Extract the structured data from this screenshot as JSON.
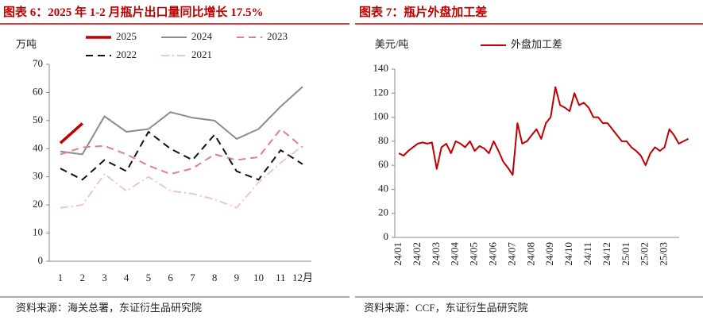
{
  "chart_data": [
    {
      "type": "line",
      "title": "图表 6：2025 年 1-2 月瓶片出口量同比增长 17.5%",
      "ylabel": "万吨",
      "source": "资料来源：海关总署，东证衍生品研究院",
      "categories": [
        "1",
        "2",
        "3",
        "4",
        "5",
        "6",
        "7",
        "8",
        "9",
        "10",
        "11",
        "12月"
      ],
      "ylim": [
        0,
        70
      ],
      "yticks": [
        0,
        10,
        20,
        30,
        40,
        50,
        60,
        70
      ],
      "grid": false,
      "legend": "top",
      "series": [
        {
          "name": "2025",
          "color": "#c00000",
          "style": "solid",
          "width": 3.5,
          "values": [
            42,
            49,
            null,
            null,
            null,
            null,
            null,
            null,
            null,
            null,
            null,
            null
          ]
        },
        {
          "name": "2024",
          "color": "#8c8c8c",
          "style": "solid",
          "width": 2,
          "values": [
            39,
            38,
            51.5,
            46,
            47,
            53,
            51,
            50,
            43.5,
            47,
            55,
            62
          ]
        },
        {
          "name": "2023",
          "color": "#e08080",
          "style": "dashed",
          "width": 2,
          "values": [
            38,
            40.5,
            41,
            38,
            34,
            31,
            33,
            38,
            36,
            37,
            47,
            40.5
          ]
        },
        {
          "name": "2022",
          "color": "#111111",
          "style": "dashed",
          "width": 2,
          "values": [
            33,
            29,
            36,
            32,
            46,
            40,
            36,
            45,
            32,
            29,
            39.5,
            34.5
          ]
        },
        {
          "name": "2021",
          "color": "#f2c4c4",
          "style": "dashdot",
          "width": 2,
          "values": [
            19,
            20,
            31,
            25,
            30,
            25,
            24,
            22,
            19,
            28,
            35,
            41
          ]
        }
      ]
    },
    {
      "type": "line",
      "title": "图表 7：瓶片外盘加工差",
      "ylabel": "美元/吨",
      "source": "资料来源：CCF，东证衍生品研究院",
      "categories": [
        "24/01",
        null,
        null,
        null,
        "24/02",
        null,
        null,
        null,
        "24/03",
        null,
        null,
        null,
        "24/04",
        null,
        null,
        null,
        "24/05",
        null,
        null,
        null,
        "24/06",
        null,
        null,
        null,
        "24/07",
        null,
        null,
        null,
        "24/08",
        null,
        null,
        null,
        "24/09",
        null,
        null,
        null,
        "24/10",
        null,
        null,
        null,
        "24/11",
        null,
        null,
        null,
        "24/12",
        null,
        null,
        null,
        "25/01",
        null,
        null,
        null,
        "25/02",
        null,
        null,
        null,
        "25/03",
        null,
        null,
        null,
        null,
        null
      ],
      "ylim": [
        0,
        140
      ],
      "yticks": [
        0,
        20,
        40,
        60,
        80,
        100,
        120,
        140
      ],
      "grid": false,
      "legend": "top",
      "series": [
        {
          "name": "外盘加工差",
          "color": "#c00000",
          "style": "solid",
          "width": 2,
          "values": [
            70,
            68,
            72,
            75,
            78,
            79,
            78,
            79,
            57,
            75,
            78,
            70,
            80,
            78,
            75,
            80,
            72,
            76,
            74,
            70,
            80,
            72,
            63,
            58,
            52,
            95,
            78,
            80,
            85,
            90,
            82,
            95,
            100,
            125,
            110,
            108,
            105,
            120,
            110,
            112,
            108,
            100,
            100,
            95,
            95,
            90,
            85,
            80,
            80,
            75,
            72,
            68,
            60,
            70,
            75,
            72,
            75,
            90,
            85,
            78,
            80,
            82
          ]
        }
      ]
    }
  ]
}
